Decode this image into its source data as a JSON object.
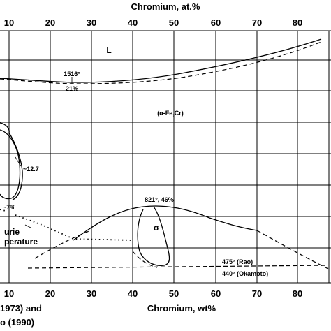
{
  "top_axis": {
    "title": "Chromium, at.%",
    "ticks": [
      "10",
      "20",
      "30",
      "40",
      "50",
      "60",
      "70",
      "80"
    ]
  },
  "bottom_axis": {
    "title": "Chromium, wt%",
    "ticks": [
      "10",
      "20",
      "30",
      "40",
      "50",
      "60",
      "70",
      "80"
    ]
  },
  "labels": {
    "liquid": "L",
    "liquidus_min_temp": "1516°",
    "liquidus_min_comp": "21%",
    "alpha_phase": "(α-Fe,Cr)",
    "gamma_loop_comp": "~12.7",
    "gamma_loop_low": "~7%",
    "sigma_max": "821°, 46%",
    "sigma_phase": "σ",
    "curie_line1": "urie",
    "curie_line2": "perature",
    "rao_temp": "475° (Rao)",
    "okamoto_temp": "440° (Okamoto)"
  },
  "references": {
    "line1": "1973) and",
    "line2": "o (1990)"
  }
}
